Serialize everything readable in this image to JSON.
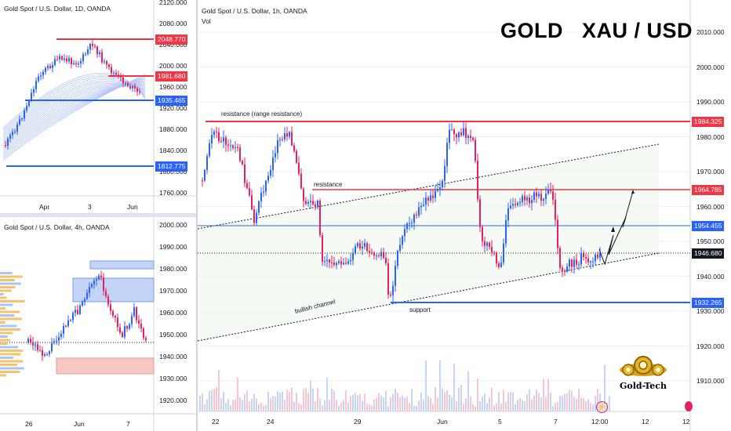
{
  "colors": {
    "up": "#2962ff",
    "down": "#e91e63",
    "res": "#f23645",
    "sup": "#2962ff",
    "grid": "#eef0f3",
    "price_tag": "#131722"
  },
  "daily": {
    "title": "Gold Spot / U.S. Dollar, 1D, OANDA",
    "yticks": [
      "2120.000",
      "2080.000",
      "2040.000",
      "2000.000",
      "1960.000",
      "1920.000",
      "1880.000",
      "1840.000",
      "1800.000",
      "1760.000"
    ],
    "xticks": [
      "Apr",
      "3",
      "Jun"
    ],
    "tags": [
      "2048.770",
      "1981.680",
      "1935.465",
      "1812.775"
    ]
  },
  "h4": {
    "title": "Gold Spot / U.S. Dollar, 4h, OANDA",
    "yticks": [
      "2000.000",
      "1990.000",
      "1980.000",
      "1970.000",
      "1960.000",
      "1950.000",
      "1940.000",
      "1930.000",
      "1920.000"
    ],
    "xticks": [
      "26",
      "Jun",
      "7"
    ]
  },
  "h1": {
    "title": "Gold Spot / U.S. Dollar, 1h, OANDA",
    "vol": "Vol",
    "brand_title": "GOLD   XAU / USD",
    "yticks": [
      "2010.000",
      "2000.000",
      "1990.000",
      "1980.000",
      "1970.000",
      "1960.000",
      "1950.000",
      "1940.000",
      "1930.000",
      "1920.000",
      "1910.000"
    ],
    "xticks": [
      "22",
      "24",
      "29",
      "Jun",
      "5",
      "7",
      "12:00",
      "12",
      "12"
    ],
    "tags": {
      "r1": "1984.325",
      "r2": "1964.785",
      "s1": "1954.455",
      "cur": "1946.680",
      "s2": "1932.265"
    },
    "notes": {
      "range": "resistance (range resistance)",
      "res": "resistance",
      "channel": "bullish channel",
      "support": "support"
    },
    "logo": "Gold-Tech"
  }
}
